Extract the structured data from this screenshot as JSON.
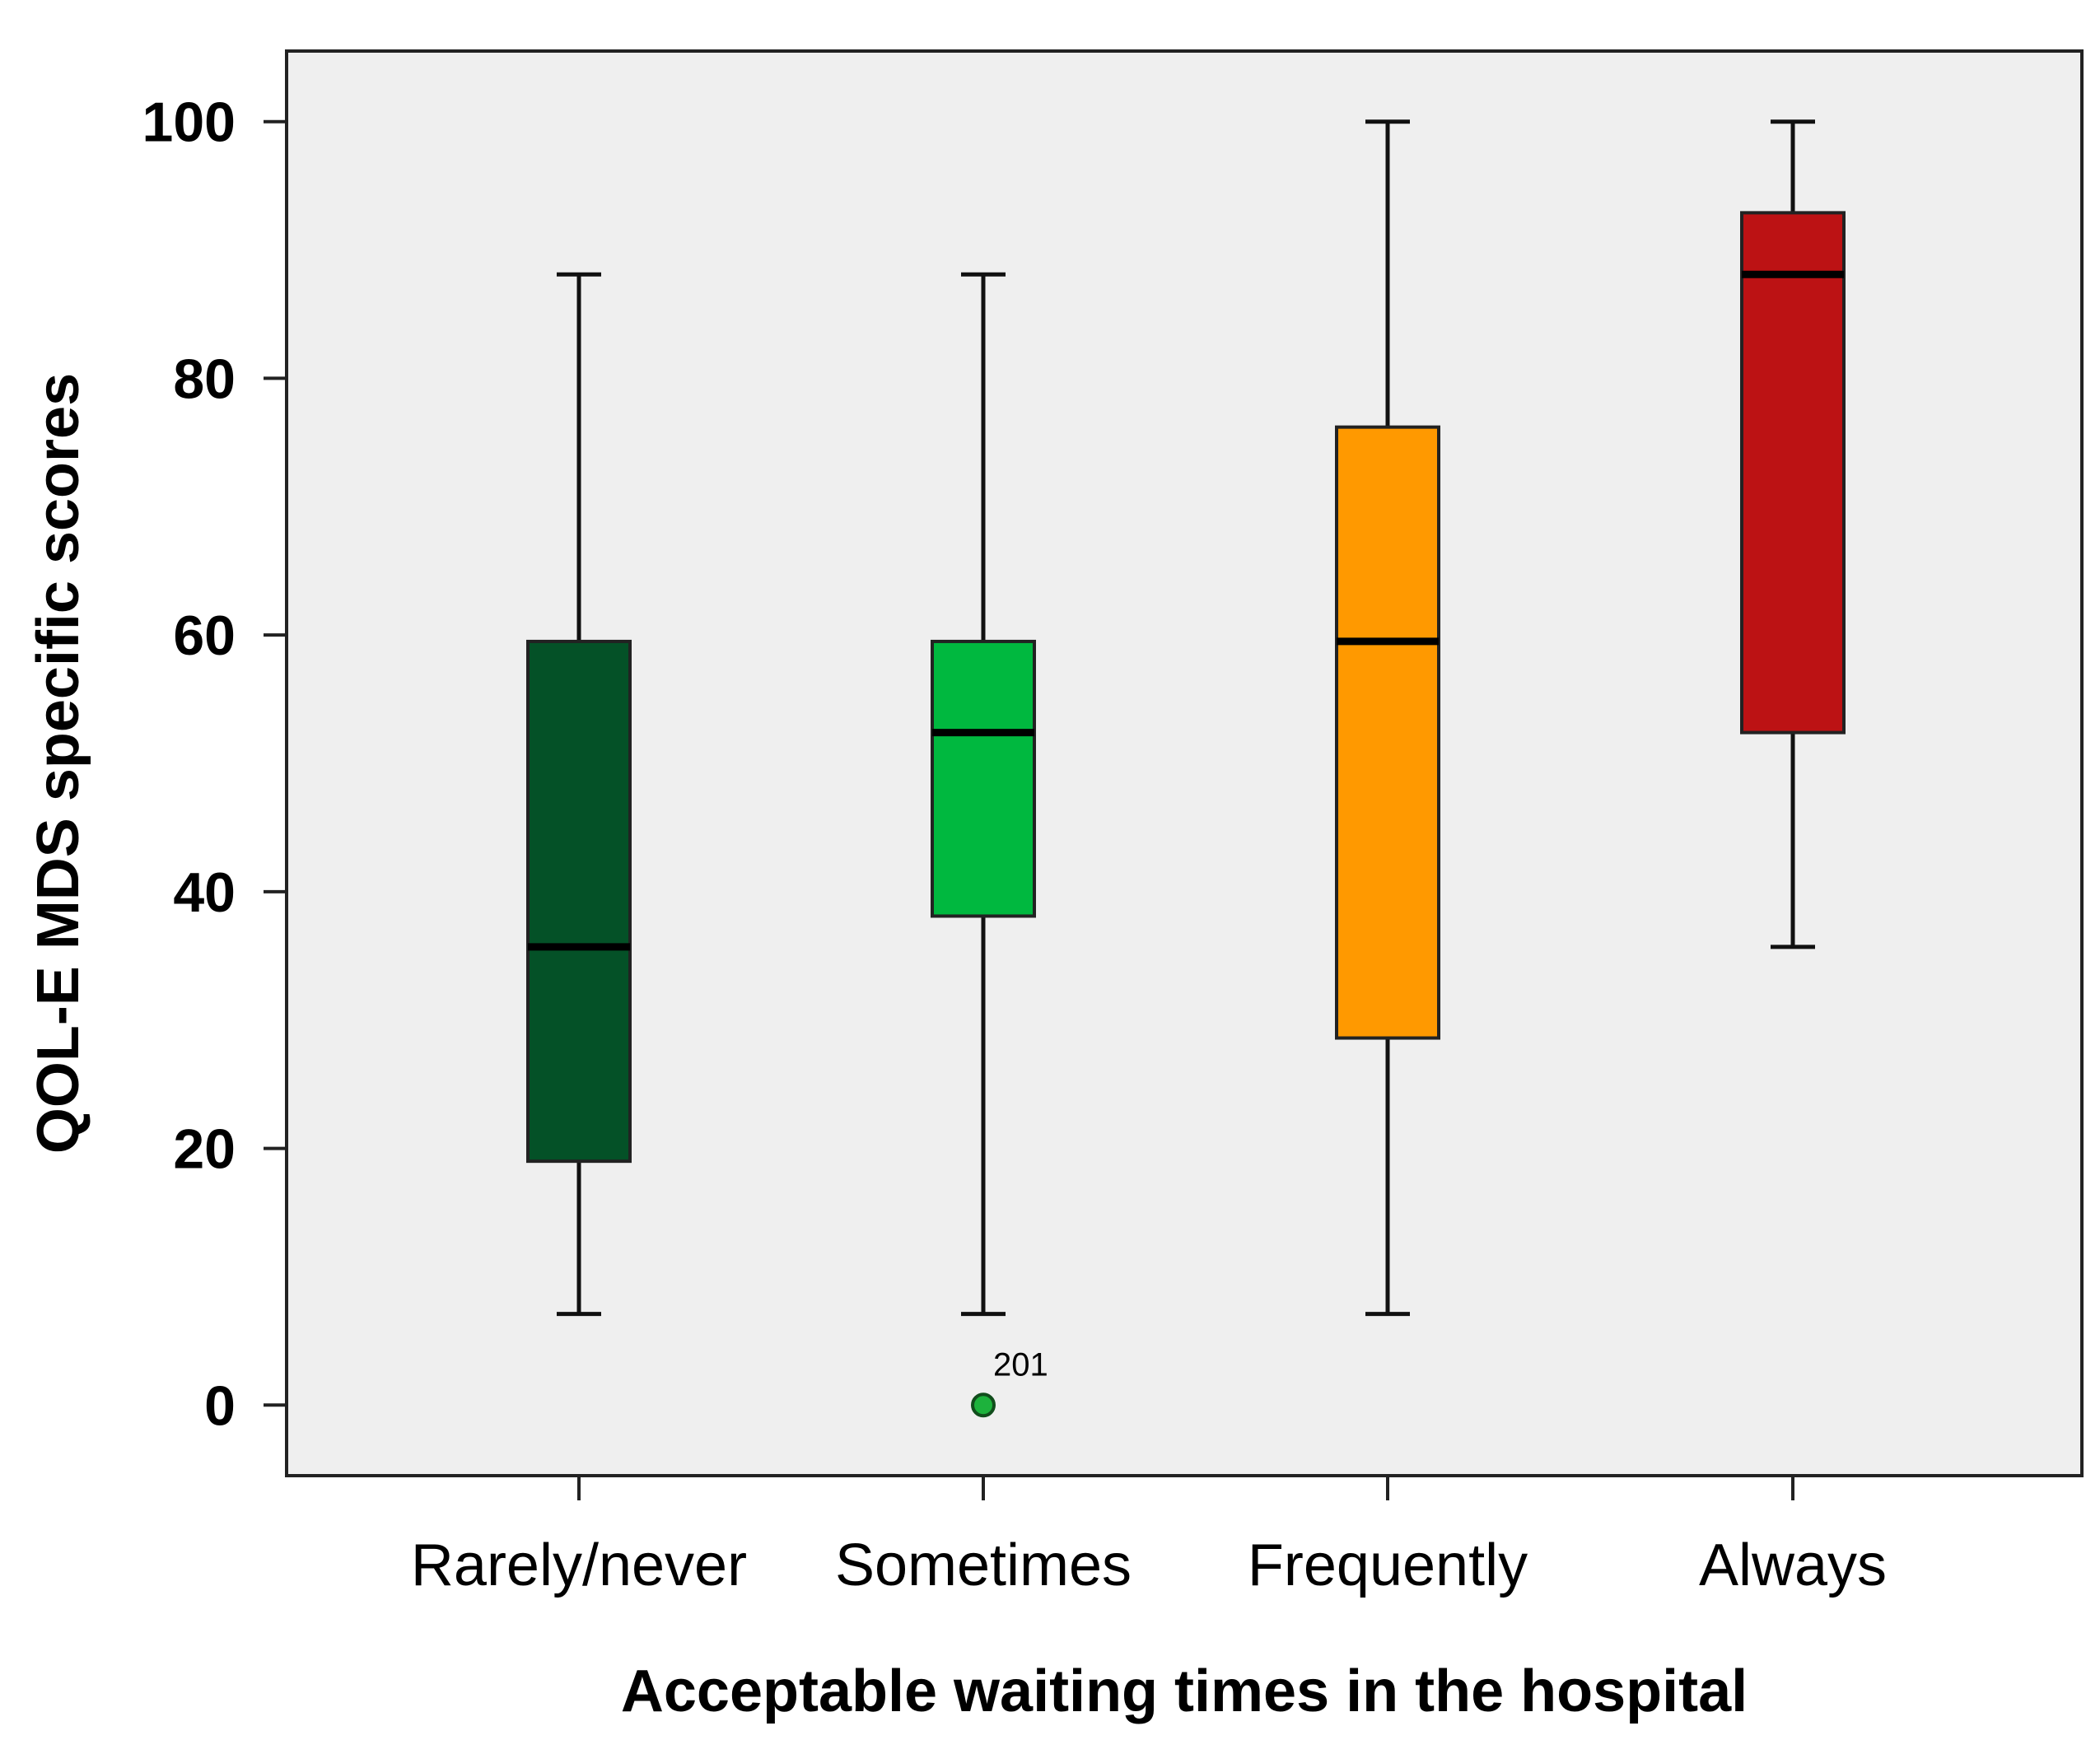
{
  "chart_data": {
    "type": "boxplot",
    "title": "",
    "xlabel": "Acceptable waiting times in the hospital",
    "ylabel": "QOL-E MDS specific scores",
    "ylim": [
      -5.5,
      105.5
    ],
    "yticks": [
      0,
      20,
      40,
      60,
      80,
      100
    ],
    "grid": false,
    "background": "#efefef",
    "categories": [
      "Rarely/never",
      "Sometimes",
      "Frequently",
      "Always"
    ],
    "boxes": [
      {
        "name": "Rarely/never",
        "color": "#045127",
        "whisker_low": 7.1,
        "q1": 19.0,
        "median": 35.7,
        "q3": 59.5,
        "whisker_high": 88.1
      },
      {
        "name": "Sometimes",
        "color": "#00b83f",
        "whisker_low": 7.1,
        "q1": 38.1,
        "median": 52.4,
        "q3": 59.5,
        "whisker_high": 88.1
      },
      {
        "name": "Frequently",
        "color": "#ff9900",
        "whisker_low": 7.1,
        "q1": 28.6,
        "median": 59.5,
        "q3": 76.2,
        "whisker_high": 100
      },
      {
        "name": "Always",
        "color": "#bc1214",
        "whisker_low": 35.7,
        "q1": 52.4,
        "median": 88.1,
        "q3": 92.9,
        "whisker_high": 100
      }
    ],
    "outliers": [
      {
        "category": "Sometimes",
        "value": 0,
        "label": "201",
        "color": "#1db23c"
      }
    ]
  }
}
